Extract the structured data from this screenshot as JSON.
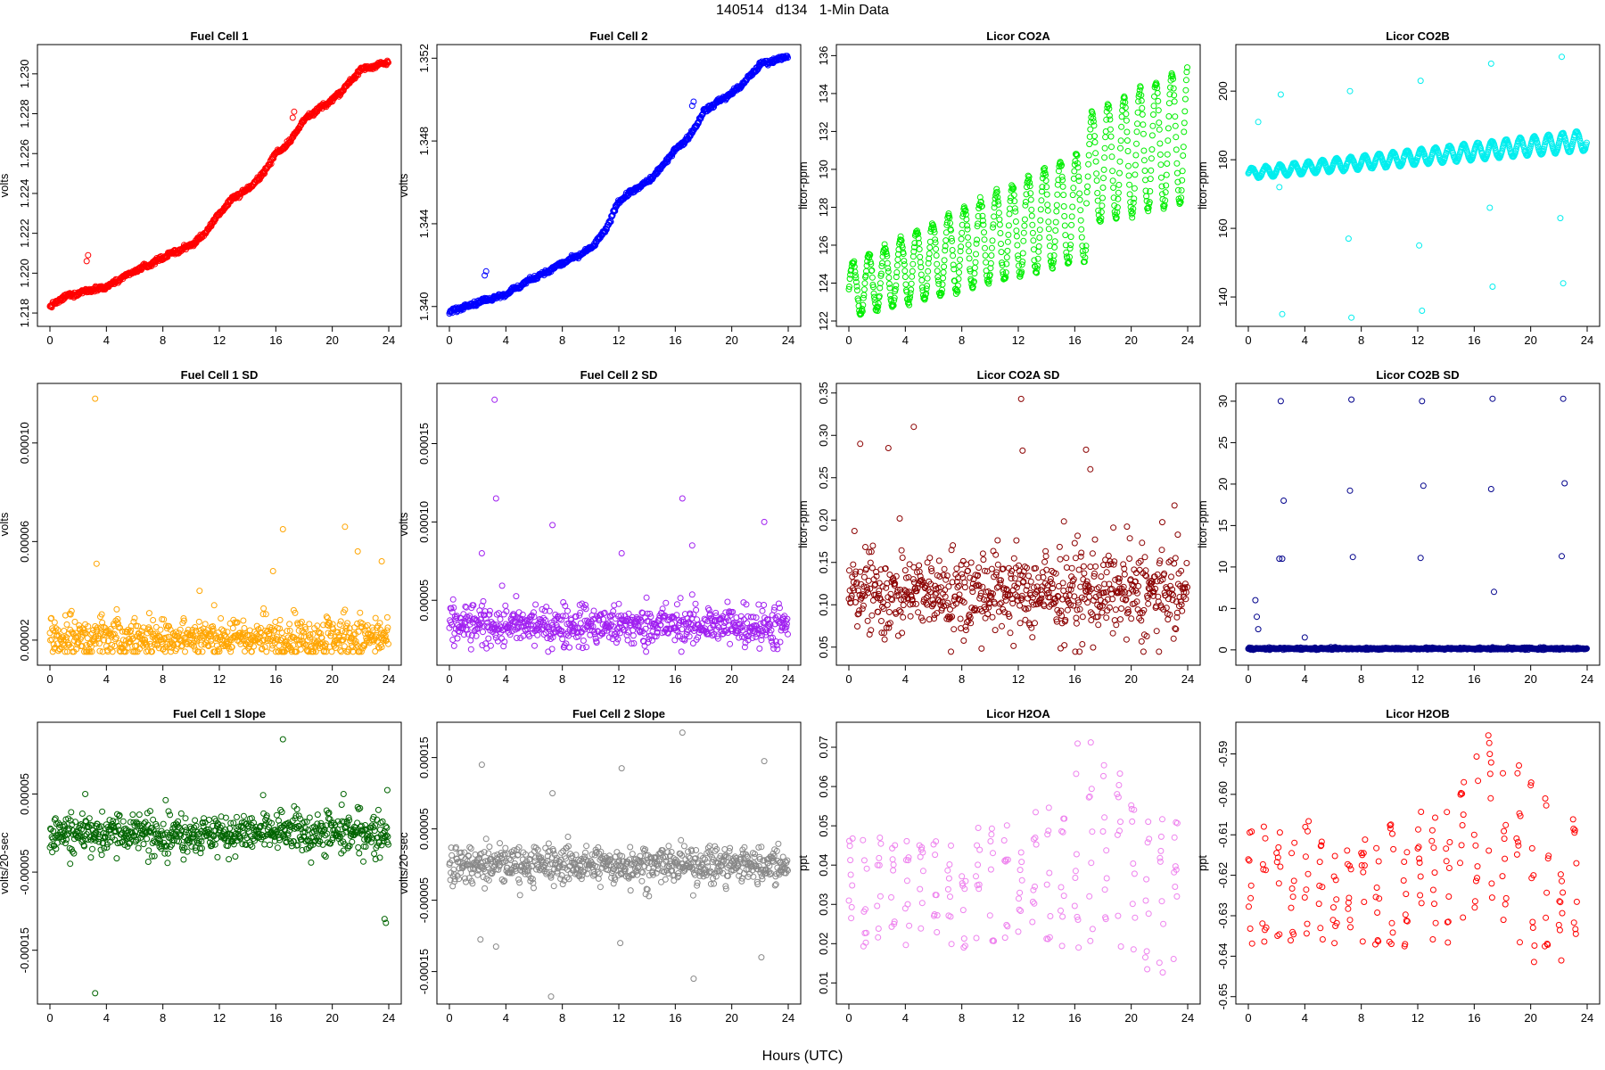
{
  "header": {
    "title": "140514   d134   1-Min Data"
  },
  "footer": {
    "xlabel": "Hours (UTC)"
  },
  "chart_data": [
    {
      "id": "fc1",
      "type": "scatter",
      "title": "Fuel Cell 1",
      "ylabel": "volts",
      "color": "#ff0000",
      "xlim": [
        0,
        24
      ],
      "ylim": [
        1.2176,
        1.2312
      ],
      "xticks": [
        0,
        4,
        8,
        12,
        16,
        20,
        24
      ],
      "yticks": [
        1.218,
        1.22,
        1.222,
        1.224,
        1.226,
        1.228,
        1.23
      ],
      "ytick_labels": [
        "1.218",
        "1.220",
        "1.222",
        "1.224",
        "1.226",
        "1.228",
        "1.230"
      ],
      "series": [
        {
          "x": [
            0,
            1,
            2,
            3,
            4,
            5,
            6,
            7,
            8,
            9,
            10,
            11,
            12,
            13,
            14,
            15,
            16,
            17,
            18,
            19,
            20,
            21,
            22,
            23,
            24
          ],
          "y": [
            1.2183,
            1.2188,
            1.219,
            1.2192,
            1.2193,
            1.2197,
            1.2201,
            1.2204,
            1.2208,
            1.2211,
            1.2214,
            1.222,
            1.223,
            1.2238,
            1.2242,
            1.2249,
            1.226,
            1.2266,
            1.2277,
            1.2282,
            1.2287,
            1.2294,
            1.2302,
            1.2304,
            1.2306
          ]
        }
      ],
      "outliers": {
        "x": [
          2.6,
          2.7,
          17.2,
          17.3
        ],
        "y": [
          1.2206,
          1.2209,
          1.2278,
          1.2281
        ]
      }
    },
    {
      "id": "fc2",
      "type": "scatter",
      "title": "Fuel Cell 2",
      "ylabel": "volts",
      "color": "#0000ff",
      "xlim": [
        0,
        24
      ],
      "ylim": [
        1.3393,
        1.3524
      ],
      "xticks": [
        0,
        4,
        8,
        12,
        16,
        20,
        24
      ],
      "yticks": [
        1.34,
        1.344,
        1.348,
        1.352
      ],
      "ytick_labels": [
        "1.340",
        "1.344",
        "1.348",
        "1.352"
      ],
      "series": [
        {
          "x": [
            0,
            1,
            2,
            3,
            4,
            5,
            6,
            7,
            8,
            9,
            10,
            11,
            12,
            13,
            14,
            15,
            16,
            17,
            18,
            19,
            20,
            21,
            22,
            23,
            24
          ],
          "y": [
            1.3397,
            1.34,
            1.3402,
            1.3404,
            1.3406,
            1.341,
            1.3414,
            1.3417,
            1.3421,
            1.3424,
            1.3428,
            1.3436,
            1.3451,
            1.3456,
            1.346,
            1.3467,
            1.3476,
            1.3482,
            1.3494,
            1.3499,
            1.3503,
            1.3509,
            1.3517,
            1.3519,
            1.3521
          ]
        }
      ],
      "outliers": {
        "x": [
          2.5,
          2.6,
          17.2,
          17.3
        ],
        "y": [
          1.3415,
          1.3417,
          1.3497,
          1.3499
        ]
      }
    },
    {
      "id": "co2a",
      "type": "scatter",
      "title": "Licor CO2A",
      "ylabel": "licor-ppm",
      "color": "#00ee00",
      "xlim": [
        0,
        24
      ],
      "ylim": [
        122,
        136.3
      ],
      "xticks": [
        0,
        4,
        8,
        12,
        16,
        20,
        24
      ],
      "yticks": [
        122,
        124,
        126,
        128,
        130,
        132,
        134,
        136
      ],
      "ytick_labels": [
        "122",
        "124",
        "126",
        "128",
        "130",
        "132",
        "134",
        "136"
      ],
      "oscillation": {
        "base_start": 123.6,
        "base_slope": 0.27,
        "amp_start": 1.4,
        "amp_growth": 0.09,
        "period_hours": 1.13,
        "step_at_hour": 16.8,
        "step_size": 1.8
      }
    },
    {
      "id": "co2b",
      "type": "scatter",
      "title": "Licor CO2B",
      "ylabel": "licor-ppm",
      "color": "#00eeee",
      "xlim": [
        0,
        24
      ],
      "ylim": [
        133,
        212
      ],
      "xticks": [
        0,
        4,
        8,
        12,
        16,
        20,
        24
      ],
      "yticks": [
        140,
        160,
        180,
        200
      ],
      "ytick_labels": [
        "140",
        "160",
        "180",
        "200"
      ],
      "oscillation": {
        "base_start": 176,
        "base_slope": 0.4,
        "amp_start": 1.5,
        "amp_growth": 0.06,
        "period_hours": 1.0
      },
      "outliers": {
        "x": [
          2.3,
          2.4,
          7.2,
          7.3,
          12.2,
          12.3,
          17.2,
          17.3,
          22.2,
          22.3,
          0.7,
          2.2,
          7.1,
          12.1,
          17.1,
          22.1
        ],
        "y": [
          199,
          135,
          200,
          134,
          203,
          136,
          208,
          143,
          210,
          144,
          191,
          172,
          157,
          155,
          166,
          163
        ]
      }
    },
    {
      "id": "fc1sd",
      "type": "scatter",
      "title": "Fuel Cell 1 SD",
      "ylabel": "volts",
      "color": "#ffa500",
      "xlim": [
        0,
        24
      ],
      "ylim": [
        1.2e-05,
        0.000122
      ],
      "xticks": [
        0,
        4,
        8,
        12,
        16,
        20,
        24
      ],
      "yticks": [
        2e-05,
        6e-05,
        0.0001
      ],
      "ytick_labels": [
        "0.00002",
        "0.00006",
        "0.00010"
      ],
      "noise": {
        "mean": 2.1e-05,
        "spread": 6e-06
      },
      "outliers": {
        "x": [
          3.2,
          3.3,
          10.6,
          15.8,
          16.5,
          20.9,
          21.8,
          23.5
        ],
        "y": [
          0.000118,
          5.1e-05,
          4e-05,
          4.8e-05,
          6.5e-05,
          6.6e-05,
          5.6e-05,
          5.2e-05
        ]
      }
    },
    {
      "id": "fc2sd",
      "type": "scatter",
      "title": "Fuel Cell 2 SD",
      "ylabel": "volts",
      "color": "#a020f0",
      "xlim": [
        0,
        24
      ],
      "ylim": [
        1.2e-05,
        0.000185
      ],
      "xticks": [
        0,
        4,
        8,
        12,
        16,
        20,
        24
      ],
      "yticks": [
        5e-05,
        0.0001,
        0.00015
      ],
      "ytick_labels": [
        "0.00005",
        "0.00010",
        "0.00015"
      ],
      "noise": {
        "mean": 3.4e-05,
        "spread": 9e-06
      },
      "outliers": {
        "x": [
          3.2,
          3.3,
          2.3,
          7.3,
          12.2,
          16.5,
          17.2,
          22.3
        ],
        "y": [
          0.000178,
          0.000115,
          8e-05,
          9.8e-05,
          8e-05,
          0.000115,
          8.5e-05,
          0.0001
        ]
      }
    },
    {
      "id": "co2asd",
      "type": "scatter",
      "title": "Licor CO2A SD",
      "ylabel": "licor-ppm",
      "color": "#8b0000",
      "xlim": [
        0,
        24
      ],
      "ylim": [
        0.035,
        0.355
      ],
      "xticks": [
        0,
        4,
        8,
        12,
        16,
        20,
        24
      ],
      "yticks": [
        0.05,
        0.1,
        0.15,
        0.2,
        0.25,
        0.3,
        0.35
      ],
      "ytick_labels": [
        "0.05",
        "0.10",
        "0.15",
        "0.20",
        "0.25",
        "0.30",
        "0.35"
      ],
      "noise": {
        "mean": 0.115,
        "spread": 0.035
      },
      "outliers": {
        "x": [
          12.2,
          4.6,
          0.8,
          2.8,
          12.3,
          16.8,
          17.1
        ],
        "y": [
          0.343,
          0.31,
          0.29,
          0.285,
          0.282,
          0.283,
          0.26
        ]
      }
    },
    {
      "id": "co2bsd",
      "type": "scatter",
      "title": "Licor CO2B SD",
      "ylabel": "licor-ppm",
      "color": "#00008b",
      "xlim": [
        0,
        24
      ],
      "ylim": [
        -1.2,
        31.5
      ],
      "xticks": [
        0,
        4,
        8,
        12,
        16,
        20,
        24
      ],
      "yticks": [
        0,
        5,
        10,
        15,
        20,
        25,
        30
      ],
      "ytick_labels": [
        "0",
        "5",
        "10",
        "15",
        "20",
        "25",
        "30"
      ],
      "noise": {
        "mean": 0.15,
        "spread": 0.08
      },
      "outliers": {
        "x": [
          2.3,
          2.5,
          2.2,
          2.4,
          7.3,
          7.2,
          7.4,
          12.3,
          12.4,
          12.2,
          17.3,
          17.2,
          17.4,
          22.3,
          22.4,
          22.2,
          0.5,
          0.6,
          0.7,
          4.0
        ],
        "y": [
          30,
          18,
          11,
          11,
          30.2,
          19.2,
          11.2,
          30,
          19.8,
          11.1,
          30.3,
          19.4,
          7,
          30.3,
          20.1,
          11.3,
          6,
          4,
          2.5,
          1.5
        ]
      }
    },
    {
      "id": "fc1slope",
      "type": "scatter",
      "title": "Fuel Cell 1 Slope",
      "ylabel": "volts/20-sec",
      "color": "#006400",
      "xlim": [
        0,
        24
      ],
      "ylim": [
        -0.000212,
        0.000135
      ],
      "xticks": [
        0,
        4,
        8,
        12,
        16,
        20,
        24
      ],
      "yticks": [
        -0.00015,
        -5e-05,
        5e-05
      ],
      "ytick_labels": [
        "-0.00015",
        "-0.00005",
        "0.00005"
      ],
      "noise": {
        "mean": 0.0,
        "spread": 1.8e-05
      },
      "outliers": {
        "x": [
          3.2,
          16.5,
          2.5,
          23.7,
          23.8,
          23.9,
          20.8
        ],
        "y": [
          -0.000205,
          0.00012,
          5e-05,
          -0.00011,
          -0.000115,
          5.5e-05,
          5e-05
        ]
      }
    },
    {
      "id": "fc2slope",
      "type": "scatter",
      "title": "Fuel Cell 2 Slope",
      "ylabel": "volts/20-sec",
      "color": "#888888",
      "xlim": [
        0,
        24
      ],
      "ylim": [
        -0.000188,
        0.000192
      ],
      "xticks": [
        0,
        4,
        8,
        12,
        16,
        20,
        24
      ],
      "yticks": [
        -0.00015,
        -5e-05,
        5e-05,
        0.00015
      ],
      "ytick_labels": [
        "-0.00015",
        "-0.00005",
        "0.00005",
        "0.00015"
      ],
      "noise": {
        "mean": 0.0,
        "spread": 1.8e-05
      },
      "outliers": {
        "x": [
          7.2,
          16.5,
          2.3,
          12.2,
          22.3,
          3.3,
          2.2,
          12.1,
          17.3,
          22.1,
          7.3
        ],
        "y": [
          -0.000185,
          0.000185,
          0.00014,
          0.000135,
          0.000145,
          -0.000115,
          -0.000105,
          -0.00011,
          -0.00016,
          -0.00013,
          0.0001
        ]
      }
    },
    {
      "id": "h2oa",
      "type": "scatter",
      "title": "Licor H2OA",
      "ylabel": "ppt",
      "color": "#ee82ee",
      "xlim": [
        0,
        24
      ],
      "ylim": [
        0.006,
        0.075
      ],
      "xticks": [
        0,
        4,
        8,
        12,
        16,
        20,
        24
      ],
      "yticks": [
        0.01,
        0.02,
        0.03,
        0.04,
        0.05,
        0.06,
        0.07
      ],
      "ytick_labels": [
        "0.01",
        "0.02",
        "0.03",
        "0.04",
        "0.05",
        "0.06",
        "0.07"
      ],
      "comb": {
        "low_base": 0.019,
        "high_base": 0.05,
        "period_hours": 1.0,
        "peak_hour": 17,
        "peak_high": 0.073,
        "end_low": 0.01
      }
    },
    {
      "id": "h2ob",
      "type": "scatter",
      "title": "Licor H2OB",
      "ylabel": "ppt",
      "color": "#ff0000",
      "xlim": [
        0,
        24
      ],
      "ylim": [
        -0.6505,
        -0.5835
      ],
      "xticks": [
        0,
        4,
        8,
        12,
        16,
        20,
        24
      ],
      "yticks": [
        -0.65,
        -0.64,
        -0.63,
        -0.62,
        -0.61,
        -0.6,
        -0.59
      ],
      "ytick_labels": [
        "-0.65",
        "-0.64",
        "-0.63",
        "-0.62",
        "-0.61",
        "-0.60",
        "-0.59"
      ],
      "comb": {
        "low_base": -0.638,
        "high_base": -0.606,
        "period_hours": 1.0,
        "peak_hour": 17,
        "peak_high": -0.585,
        "end_low": -0.648
      }
    }
  ]
}
